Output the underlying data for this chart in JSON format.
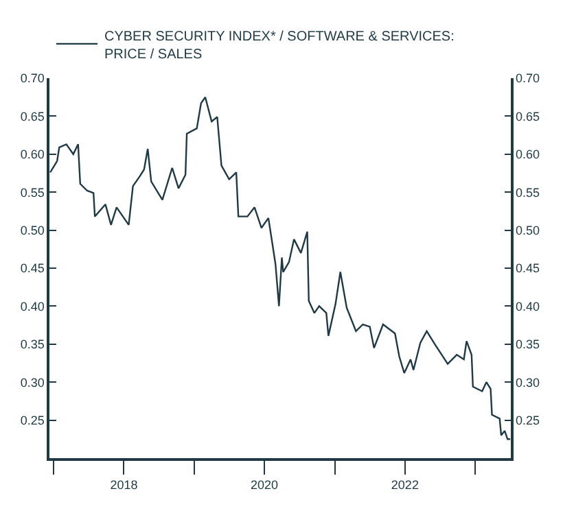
{
  "chart_data": {
    "type": "line",
    "x": [
      "2016-12-14",
      "2017-01-19",
      "2017-01-30",
      "2017-03-08",
      "2017-04-13",
      "2017-05-08",
      "2017-05-19",
      "2017-06-24",
      "2017-07-27",
      "2017-08-03",
      "2017-09-27",
      "2017-10-26",
      "2017-11-24",
      "2018-01-26",
      "2018-02-17",
      "2018-03-25",
      "2018-04-16",
      "2018-05-05",
      "2018-05-23",
      "2018-07-20",
      "2018-09-09",
      "2018-10-12",
      "2018-11-17",
      "2018-11-24",
      "2019-01-15",
      "2019-02-06",
      "2019-02-28",
      "2019-04-02",
      "2019-05-01",
      "2019-05-23",
      "2019-07-02",
      "2019-08-08",
      "2019-08-19",
      "2019-10-05",
      "2019-11-11",
      "2019-12-17",
      "2020-01-22",
      "2020-02-13",
      "2020-02-28",
      "2020-03-17",
      "2020-04-01",
      "2020-04-08",
      "2020-05-08",
      "2020-06-03",
      "2020-07-09",
      "2020-08-11",
      "2020-08-19",
      "2020-09-17",
      "2020-10-12",
      "2020-11-18",
      "2020-11-29",
      "2021-01-05",
      "2021-01-30",
      "2021-03-04",
      "2021-04-21",
      "2021-05-27",
      "2021-07-02",
      "2021-07-24",
      "2021-09-09",
      "2021-11-10",
      "2021-12-02",
      "2021-12-28",
      "2022-01-30",
      "2022-02-14",
      "2022-03-22",
      "2022-04-24",
      "2022-06-10",
      "2022-08-11",
      "2022-09-27",
      "2022-11-03",
      "2022-11-17",
      "2022-12-13",
      "2022-12-20",
      "2023-02-06",
      "2023-02-28",
      "2023-03-22",
      "2023-03-29",
      "2023-05-08",
      "2023-05-16",
      "2023-06-03",
      "2023-06-18",
      "2023-07-02"
    ],
    "series": [
      {
        "name": "CYBER SECURITY INDEX* / SOFTWARE & SERVICES: PRICE / SALES",
        "color": "#1f3a44",
        "values": [
          0.576,
          0.591,
          0.609,
          0.613,
          0.6,
          0.613,
          0.561,
          0.552,
          0.549,
          0.518,
          0.534,
          0.507,
          0.53,
          0.507,
          0.558,
          0.571,
          0.58,
          0.607,
          0.564,
          0.54,
          0.582,
          0.555,
          0.573,
          0.627,
          0.634,
          0.667,
          0.675,
          0.643,
          0.649,
          0.585,
          0.567,
          0.576,
          0.518,
          0.518,
          0.53,
          0.503,
          0.516,
          0.48,
          0.455,
          0.4,
          0.464,
          0.445,
          0.458,
          0.488,
          0.47,
          0.498,
          0.407,
          0.391,
          0.4,
          0.391,
          0.361,
          0.403,
          0.445,
          0.398,
          0.367,
          0.376,
          0.373,
          0.345,
          0.376,
          0.364,
          0.334,
          0.312,
          0.33,
          0.316,
          0.352,
          0.367,
          0.348,
          0.324,
          0.336,
          0.33,
          0.354,
          0.336,
          0.294,
          0.288,
          0.3,
          0.291,
          0.257,
          0.252,
          0.23,
          0.236,
          0.225,
          0.225
        ]
      }
    ],
    "xlim": [
      "2016-12-10",
      "2023-07-05"
    ],
    "xticks": [
      {
        "value": "2017-01-01",
        "label": null
      },
      {
        "value": "2018-01-01",
        "label": "2018"
      },
      {
        "value": "2019-01-01",
        "label": null
      },
      {
        "value": "2020-01-01",
        "label": "2020"
      },
      {
        "value": "2021-01-01",
        "label": null
      },
      {
        "value": "2022-01-01",
        "label": "2022"
      },
      {
        "value": "2023-01-01",
        "label": null
      }
    ],
    "ylim": [
      0.2,
      0.7
    ],
    "yticks": [
      {
        "value": 0.25,
        "label": "0.25"
      },
      {
        "value": 0.3,
        "label": "0.30"
      },
      {
        "value": 0.35,
        "label": "0.35"
      },
      {
        "value": 0.4,
        "label": "0.40"
      },
      {
        "value": 0.45,
        "label": "0.45"
      },
      {
        "value": 0.5,
        "label": "0.50"
      },
      {
        "value": 0.55,
        "label": "0.55"
      },
      {
        "value": 0.6,
        "label": "0.60"
      },
      {
        "value": 0.65,
        "label": "0.65"
      },
      {
        "value": 0.7,
        "label": "0.70"
      }
    ],
    "y2lim": [
      0.2,
      0.7
    ],
    "y2ticks": [
      {
        "value": 0.25,
        "label": "0.25"
      },
      {
        "value": 0.3,
        "label": "0.30"
      },
      {
        "value": 0.35,
        "label": "0.35"
      },
      {
        "value": 0.4,
        "label": "0.40"
      },
      {
        "value": 0.45,
        "label": "0.45"
      },
      {
        "value": 0.5,
        "label": "0.50"
      },
      {
        "value": 0.55,
        "label": "0.55"
      },
      {
        "value": 0.6,
        "label": "0.60"
      },
      {
        "value": 0.65,
        "label": "0.65"
      },
      {
        "value": 0.7,
        "label": "0.70"
      }
    ],
    "legend": "top",
    "marker": "none",
    "line_style": "solid"
  }
}
